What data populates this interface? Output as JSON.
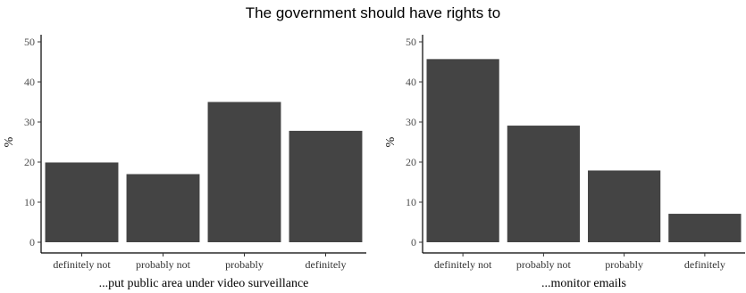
{
  "title": "The government should have rights to",
  "chart_data": [
    {
      "type": "bar",
      "categories": [
        "definitely not",
        "probably not",
        "probably",
        "definitely"
      ],
      "values": [
        19.9,
        17.0,
        35.0,
        27.8
      ],
      "xlabel": "...put public area under video surveillance",
      "ylabel": "%",
      "ylim": [
        0,
        50
      ],
      "yticks": [
        0,
        10,
        20,
        30,
        40,
        50
      ],
      "bar_color": "#444444",
      "grid": false
    },
    {
      "type": "bar",
      "categories": [
        "definitely not",
        "probably not",
        "probably",
        "definitely"
      ],
      "values": [
        45.7,
        29.1,
        17.9,
        7.1
      ],
      "xlabel": "...monitor emails",
      "ylabel": "%",
      "ylim": [
        0,
        50
      ],
      "yticks": [
        0,
        10,
        20,
        30,
        40,
        50
      ],
      "bar_color": "#444444",
      "grid": false
    }
  ]
}
